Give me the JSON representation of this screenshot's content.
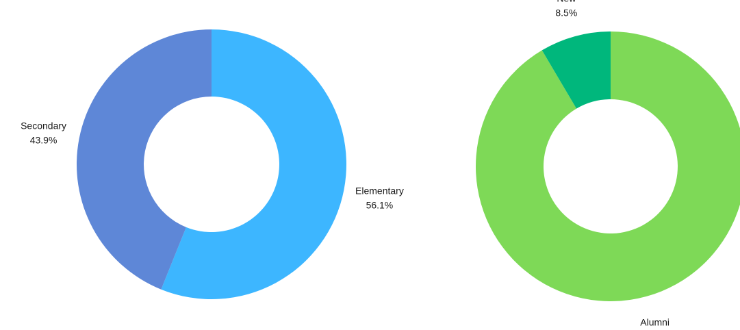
{
  "chart_data": [
    {
      "type": "pie",
      "variant": "donut",
      "slices": [
        {
          "label": "Elementary",
          "value": 56.1,
          "display": "56.1%",
          "color": "#3db6ff"
        },
        {
          "label": "Secondary",
          "value": 43.9,
          "display": "43.9%",
          "color": "#5e87d7"
        }
      ]
    },
    {
      "type": "pie",
      "variant": "donut",
      "slices": [
        {
          "label": "Alumni",
          "value": 91.5,
          "display": "91.5%",
          "color": "#7ed957"
        },
        {
          "label": "New",
          "value": 8.5,
          "display": "8.5%",
          "color": "#00b77c"
        }
      ]
    }
  ]
}
